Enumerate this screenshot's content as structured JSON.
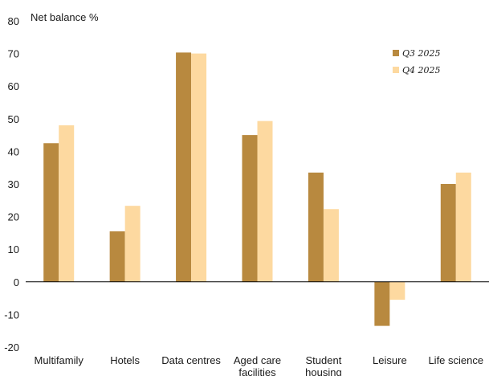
{
  "chart_data": {
    "type": "bar",
    "ylabel": "Net balance %",
    "ylim": [
      -20,
      80
    ],
    "yticks": [
      80,
      70,
      60,
      50,
      40,
      30,
      20,
      10,
      0,
      -10,
      -20
    ],
    "categories": [
      [
        "Multifamily"
      ],
      [
        "Hotels"
      ],
      [
        "Data centres"
      ],
      [
        "Aged care",
        "facilities"
      ],
      [
        "Student",
        "housing"
      ],
      [
        "Leisure"
      ],
      [
        "Life science"
      ]
    ],
    "series": [
      {
        "name": "Q3 2025",
        "color": "#b8893f",
        "values": [
          42.5,
          15.5,
          70.3,
          45,
          33.5,
          -13.5,
          30
        ]
      },
      {
        "name": "Q4 2025",
        "color": "#fdd9a0",
        "values": [
          48,
          23.3,
          70,
          49.3,
          22.3,
          -5.5,
          33.5
        ]
      }
    ],
    "legend_position": "top-right",
    "grid": false
  }
}
